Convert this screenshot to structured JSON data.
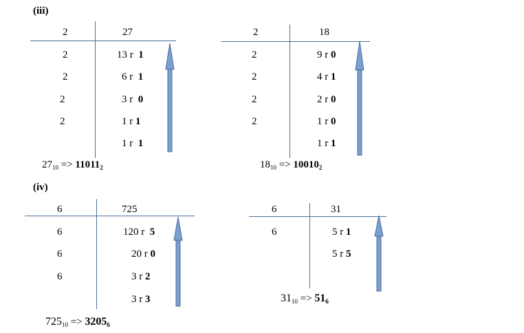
{
  "section_iii": {
    "label": "(iii)"
  },
  "section_iv": {
    "label": "(iv)"
  },
  "tables": [
    {
      "divisor_header": "2",
      "number_header": "27",
      "divisors": [
        "2",
        "2",
        "2",
        "2"
      ],
      "quotients": [
        "13 r",
        "6 r",
        "3 r",
        "1  r",
        "1 r"
      ],
      "remainders": [
        "1",
        "1",
        "0",
        "1",
        "1"
      ],
      "result": {
        "num": "27",
        "base_from": "10",
        "arrow": "=>",
        "answer": "11011",
        "base_to": "2"
      }
    },
    {
      "divisor_header": "2",
      "number_header": "18",
      "divisors": [
        "2",
        "2",
        "2",
        "2"
      ],
      "quotients": [
        "9 r",
        "4  r",
        "2  r",
        "1  r",
        "1  r"
      ],
      "remainders": [
        "0",
        "1",
        "0",
        "0",
        "1"
      ],
      "result": {
        "num": "18",
        "base_from": "10",
        "arrow": "=>",
        "answer": "10010",
        "base_to": "2"
      }
    },
    {
      "divisor_header": "6",
      "number_header": "725",
      "divisors": [
        "6",
        "6",
        "6"
      ],
      "quotients": [
        "120 r",
        "20 r",
        "3  r",
        "3  r"
      ],
      "remainders": [
        "5",
        "0",
        "2",
        "3"
      ],
      "result": {
        "num": "725",
        "base_from": "10",
        "arrow": "=>",
        "answer": "3205",
        "base_to": "6"
      }
    },
    {
      "divisor_header": "6",
      "number_header": "31",
      "divisors": [
        "6"
      ],
      "quotients": [
        "5 r",
        "5 r"
      ],
      "remainders": [
        "1",
        "5"
      ],
      "result": {
        "num": "31",
        "base_from": "10",
        "arrow": "=>",
        "answer": "51",
        "base_to": "6"
      }
    }
  ],
  "colors": {
    "line": "#4a6f99",
    "arrow_fill": "#7a9fd0",
    "arrow_stroke": "#4a6f99"
  }
}
